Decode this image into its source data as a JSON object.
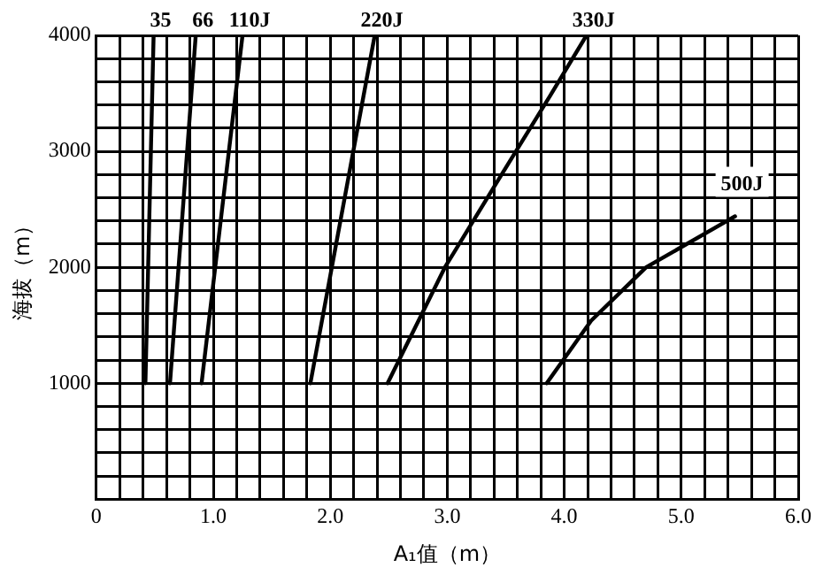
{
  "chart_data": {
    "type": "line",
    "xlabel": "A₁值（m）",
    "ylabel": "海拔（m）",
    "xlim": [
      0,
      6
    ],
    "ylim": [
      0,
      4000
    ],
    "xticks": [
      0,
      {
        "value": 0.2,
        "label": null
      },
      {
        "value": 0.4,
        "label": null
      },
      {
        "value": 0.6,
        "label": null
      },
      {
        "value": 0.8,
        "label": null
      },
      {
        "value": 1,
        "label": "1.0"
      },
      {
        "value": 1.2,
        "label": null
      },
      {
        "value": 1.4,
        "label": null
      },
      {
        "value": 1.6,
        "label": null
      },
      {
        "value": 1.8,
        "label": null
      },
      {
        "value": 2,
        "label": "2.0"
      },
      {
        "value": 2.2,
        "label": null
      },
      {
        "value": 2.4,
        "label": null
      },
      {
        "value": 2.6,
        "label": null
      },
      {
        "value": 2.8,
        "label": null
      },
      {
        "value": 3,
        "label": "3.0"
      },
      {
        "value": 3.2,
        "label": null
      },
      {
        "value": 3.4,
        "label": null
      },
      {
        "value": 3.6,
        "label": null
      },
      {
        "value": 3.8,
        "label": null
      },
      {
        "value": 4,
        "label": "4.0"
      },
      {
        "value": 4.2,
        "label": null
      },
      {
        "value": 4.4,
        "label": null
      },
      {
        "value": 4.6,
        "label": null
      },
      {
        "value": 4.8,
        "label": null
      },
      {
        "value": 5,
        "label": "5.0"
      },
      {
        "value": 5.2,
        "label": null
      },
      {
        "value": 5.4,
        "label": null
      },
      {
        "value": 5.6,
        "label": null
      },
      {
        "value": 5.8,
        "label": null
      },
      {
        "value": 6,
        "label": "6.0"
      }
    ],
    "yticks": [
      {
        "value": 0,
        "label": null
      },
      {
        "value": 200,
        "label": null
      },
      {
        "value": 400,
        "label": null
      },
      {
        "value": 600,
        "label": null
      },
      {
        "value": 800,
        "label": null
      },
      1000,
      {
        "value": 1200,
        "label": null
      },
      {
        "value": 1400,
        "label": null
      },
      {
        "value": 1600,
        "label": null
      },
      {
        "value": 1800,
        "label": null
      },
      2000,
      {
        "value": 2200,
        "label": null
      },
      {
        "value": 2400,
        "label": null
      },
      {
        "value": 2600,
        "label": null
      },
      {
        "value": 2800,
        "label": null
      },
      3000,
      {
        "value": 3200,
        "label": null
      },
      {
        "value": 3400,
        "label": null
      },
      {
        "value": 3600,
        "label": null
      },
      {
        "value": 3800,
        "label": null
      },
      4000
    ],
    "grid": true,
    "legend": false,
    "marker": "none",
    "line_style": "solid",
    "series": [
      {
        "name": "35",
        "color": "#000000",
        "x": [
          0.42,
          0.49
        ],
        "values": [
          1000,
          4000
        ]
      },
      {
        "name": "66",
        "color": "#000000",
        "x": [
          0.63,
          0.85
        ],
        "values": [
          1000,
          4000
        ]
      },
      {
        "name": "110J",
        "color": "#000000",
        "x": [
          0.9,
          1.25
        ],
        "values": [
          1000,
          4000
        ]
      },
      {
        "name": "220J",
        "color": "#000000",
        "x": [
          1.83,
          2.38
        ],
        "values": [
          1000,
          4000
        ]
      },
      {
        "name": "330J",
        "color": "#000000",
        "x": [
          2.49,
          2.98,
          3.44,
          3.88,
          4.19
        ],
        "values": [
          1000,
          2000,
          2760,
          3480,
          4000
        ]
      },
      {
        "name": "500J",
        "color": "#000000",
        "x": [
          3.85,
          4.23,
          4.7,
          5.46
        ],
        "values": [
          1000,
          1540,
          2000,
          2440
        ]
      }
    ]
  }
}
